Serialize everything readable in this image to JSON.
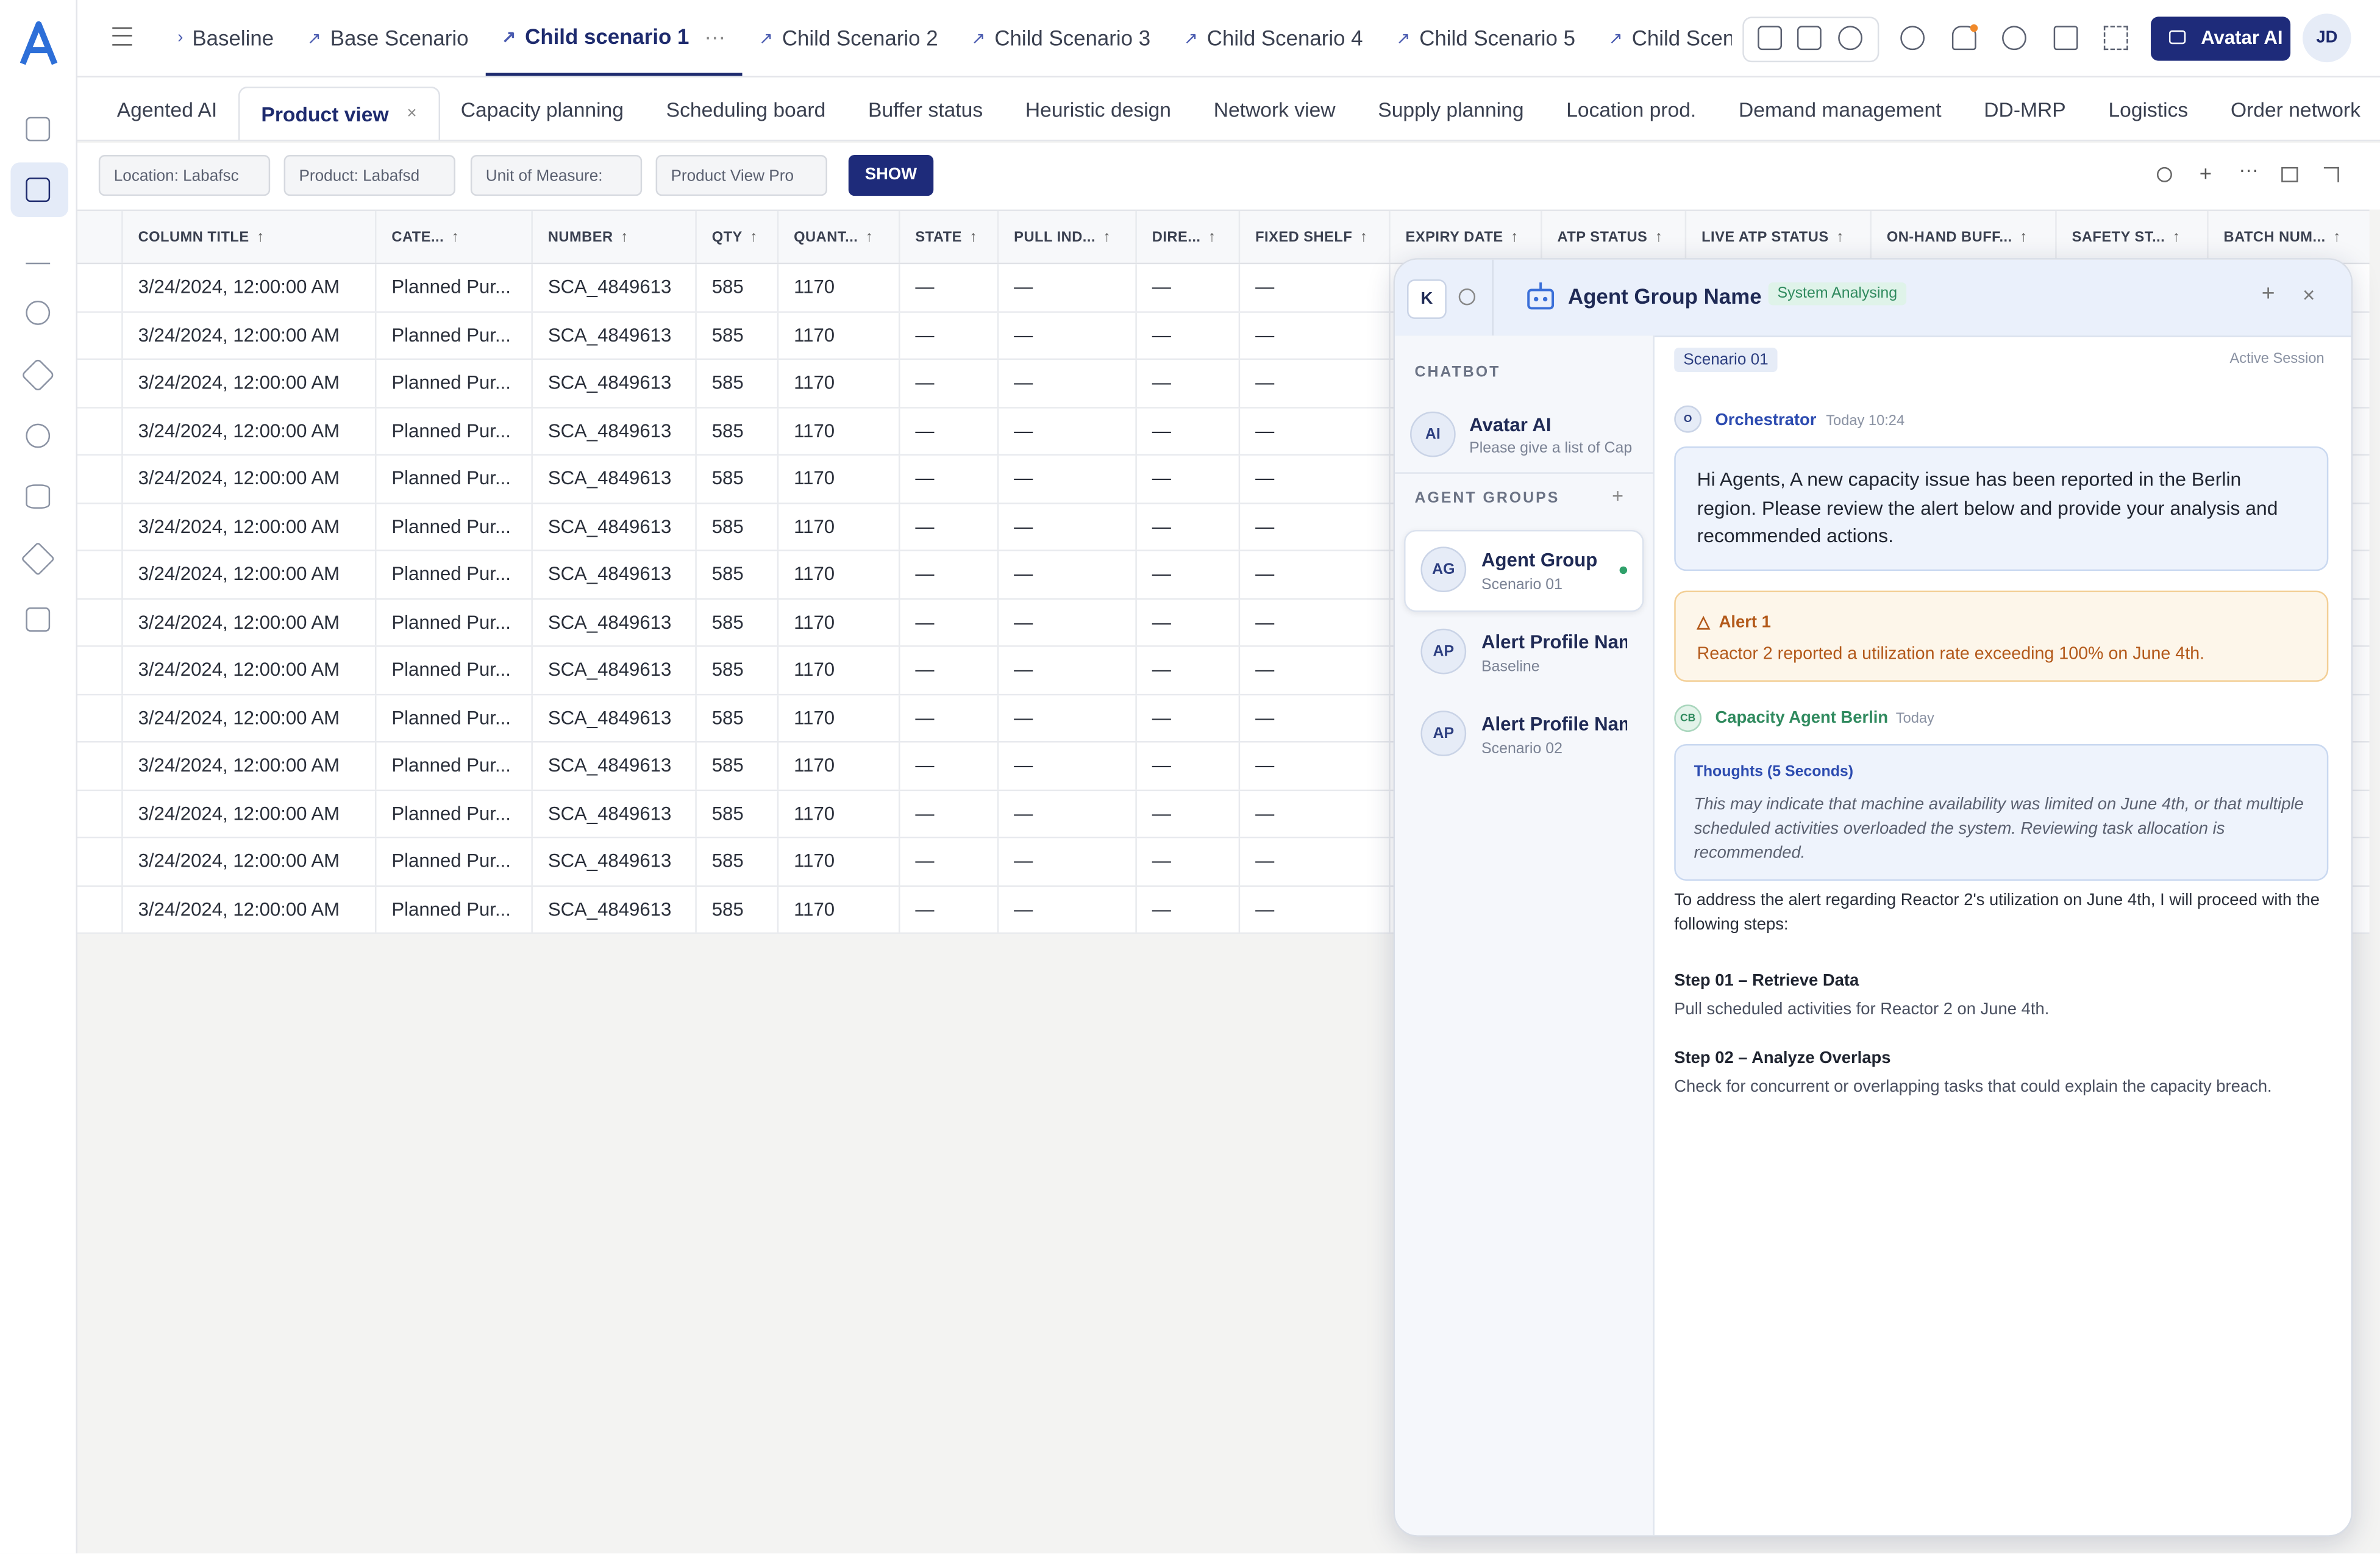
{
  "top_tabs": [
    "Baseline",
    "Base Scenario",
    "Child scenario 1",
    "Child Scenario 2",
    "Child Scenario 3",
    "Child Scenario 4",
    "Child Scenario 5",
    "Child Scenario"
  ],
  "avatar_button": "Avatar AI",
  "user_initials": "JD",
  "view_tabs": [
    "Agented AI",
    "Product view",
    "Capacity planning",
    "Scheduling board",
    "Buffer status",
    "Heuristic design",
    "Network view",
    "Supply planning",
    "Location prod.",
    "Demand management",
    "DD-MRP",
    "Logistics",
    "Order network"
  ],
  "filters": [
    "Location: Labafsc",
    "Product: Labafsd",
    "Unit of Measure:",
    "Product View Pro"
  ],
  "show_button": "SHOW",
  "table": {
    "columns": [
      "COLUMN TITLE",
      "CATE...",
      "NUMBER",
      "QTY",
      "QUANT...",
      "STATE",
      "PULL IND...",
      "DIRE...",
      "FIXED SHELF",
      "EXPIRY DATE",
      "ATP STATUS",
      "LIVE ATP STATUS",
      "ON-HAND BUFF...",
      "SAFETY ST...",
      "BATCH NUM..."
    ],
    "rows": [
      [
        "3/24/2024, 12:00:00 AM",
        "Planned Pur...",
        "SCA_4849613",
        "585",
        "1170",
        "—",
        "—",
        "—",
        "—"
      ],
      [
        "3/24/2024, 12:00:00 AM",
        "Planned Pur...",
        "SCA_4849613",
        "585",
        "1170",
        "—",
        "—",
        "—",
        "—"
      ],
      [
        "3/24/2024, 12:00:00 AM",
        "Planned Pur...",
        "SCA_4849613",
        "585",
        "1170",
        "—",
        "—",
        "—",
        "—"
      ],
      [
        "3/24/2024, 12:00:00 AM",
        "Planned Pur...",
        "SCA_4849613",
        "585",
        "1170",
        "—",
        "—",
        "—",
        "—"
      ],
      [
        "3/24/2024, 12:00:00 AM",
        "Planned Pur...",
        "SCA_4849613",
        "585",
        "1170",
        "—",
        "—",
        "—",
        "—"
      ],
      [
        "3/24/2024, 12:00:00 AM",
        "Planned Pur...",
        "SCA_4849613",
        "585",
        "1170",
        "—",
        "—",
        "—",
        "—"
      ],
      [
        "3/24/2024, 12:00:00 AM",
        "Planned Pur...",
        "SCA_4849613",
        "585",
        "1170",
        "—",
        "—",
        "—",
        "—"
      ],
      [
        "3/24/2024, 12:00:00 AM",
        "Planned Pur...",
        "SCA_4849613",
        "585",
        "1170",
        "—",
        "—",
        "—",
        "—"
      ],
      [
        "3/24/2024, 12:00:00 AM",
        "Planned Pur...",
        "SCA_4849613",
        "585",
        "1170",
        "—",
        "—",
        "—",
        "—"
      ],
      [
        "3/24/2024, 12:00:00 AM",
        "Planned Pur...",
        "SCA_4849613",
        "585",
        "1170",
        "—",
        "—",
        "—",
        "—"
      ],
      [
        "3/24/2024, 12:00:00 AM",
        "Planned Pur...",
        "SCA_4849613",
        "585",
        "1170",
        "—",
        "—",
        "—",
        "—"
      ],
      [
        "3/24/2024, 12:00:00 AM",
        "Planned Pur...",
        "SCA_4849613",
        "585",
        "1170",
        "—",
        "—",
        "—",
        "—"
      ],
      [
        "3/24/2024, 12:00:00 AM",
        "Planned Pur...",
        "SCA_4849613",
        "585",
        "1170",
        "—",
        "—",
        "—",
        "—"
      ],
      [
        "3/24/2024, 12:00:00 AM",
        "Planned Pur...",
        "SCA_4849613",
        "585",
        "1170",
        "—",
        "—",
        "—",
        "—"
      ]
    ]
  },
  "panel": {
    "search_initial": "K",
    "title": "Agent Group Name",
    "status": "System Analysing",
    "chatbot_label": "CHATBOT",
    "chatbot": {
      "initials": "AI",
      "name": "Avatar AI",
      "preview": "Please give a list of Cap"
    },
    "agent_groups_label": "AGENT GROUPS",
    "groups": [
      {
        "initials": "AG",
        "name": "Agent Group",
        "sub": "Scenario 01"
      },
      {
        "initials": "AP",
        "name": "Alert Profile Nam",
        "sub": "Baseline"
      },
      {
        "initials": "AP",
        "name": "Alert Profile Nam",
        "sub": "Scenario 02"
      }
    ],
    "scenario_tag": "Scenario 01",
    "session": "Active Session",
    "orchestrator": {
      "initials": "O",
      "name": "Orchestrator",
      "time": "Today 10:24",
      "text": "Hi Agents, A new capacity issue has been reported in the Berlin region. Please review the alert below and provide your analysis and recommended actions."
    },
    "alert": {
      "title": "Alert 1",
      "text": "Reactor 2 reported a utilization rate exceeding 100% on June 4th."
    },
    "agent": {
      "initials": "CB",
      "name": "Capacity Agent Berlin",
      "time": "Today",
      "thoughts_title": "Thoughts (5 Seconds)",
      "thoughts": "This may indicate that machine availability was limited on June 4th, or that multiple scheduled activities overloaded the system. Reviewing task allocation is recommended.",
      "intro": "To address the alert regarding Reactor 2's utilization on June 4th, I will proceed with the following steps:",
      "steps": [
        {
          "title": "Step 01 – Retrieve Data",
          "text": "Pull scheduled activities for Reactor 2 on June 4th."
        },
        {
          "title": "Step 02 – Analyze Overlaps",
          "text": "Check for concurrent or overlapping tasks that could explain the capacity breach."
        }
      ]
    }
  }
}
